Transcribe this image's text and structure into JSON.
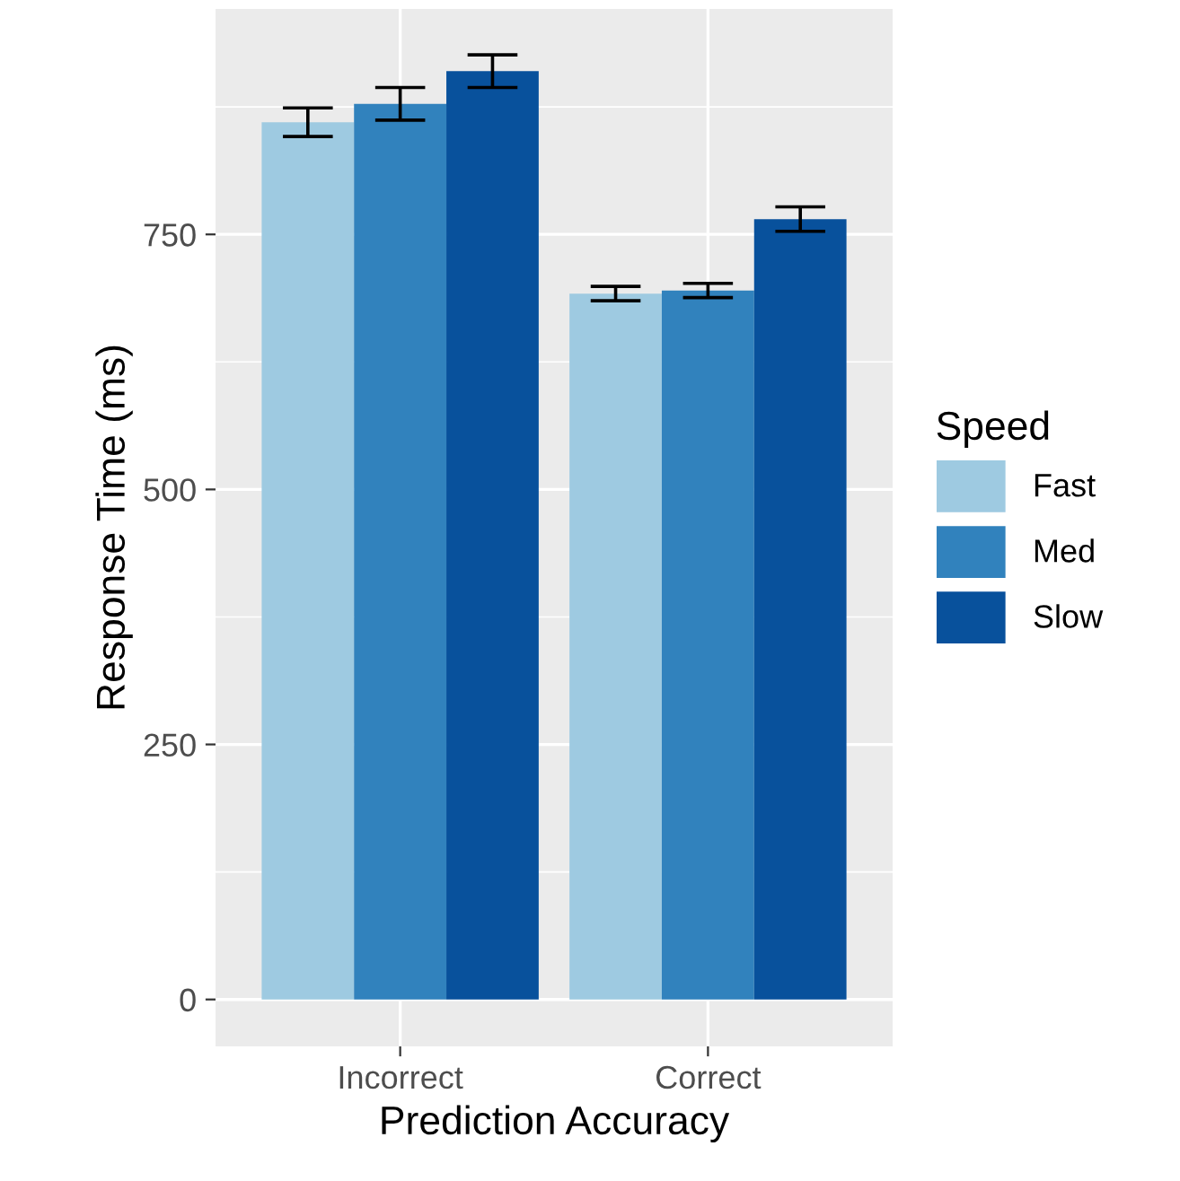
{
  "chart_data": {
    "type": "bar",
    "xlabel": "Prediction Accuracy",
    "ylabel": "Response Time (ms)",
    "legend_title": "Speed",
    "categories": [
      "Incorrect",
      "Correct"
    ],
    "series": [
      {
        "name": "Fast",
        "color": "#9ecae1",
        "values": [
          860,
          692
        ],
        "errors": [
          14,
          7
        ]
      },
      {
        "name": "Med",
        "color": "#3182bd",
        "values": [
          878,
          695
        ],
        "errors": [
          16,
          7
        ]
      },
      {
        "name": "Slow",
        "color": "#08519c",
        "values": [
          910,
          765
        ],
        "errors": [
          16,
          12
        ]
      }
    ],
    "ylim": [
      -46,
      971
    ],
    "yticks": [
      0,
      250,
      500,
      750
    ],
    "grid": true,
    "legend": "right"
  }
}
